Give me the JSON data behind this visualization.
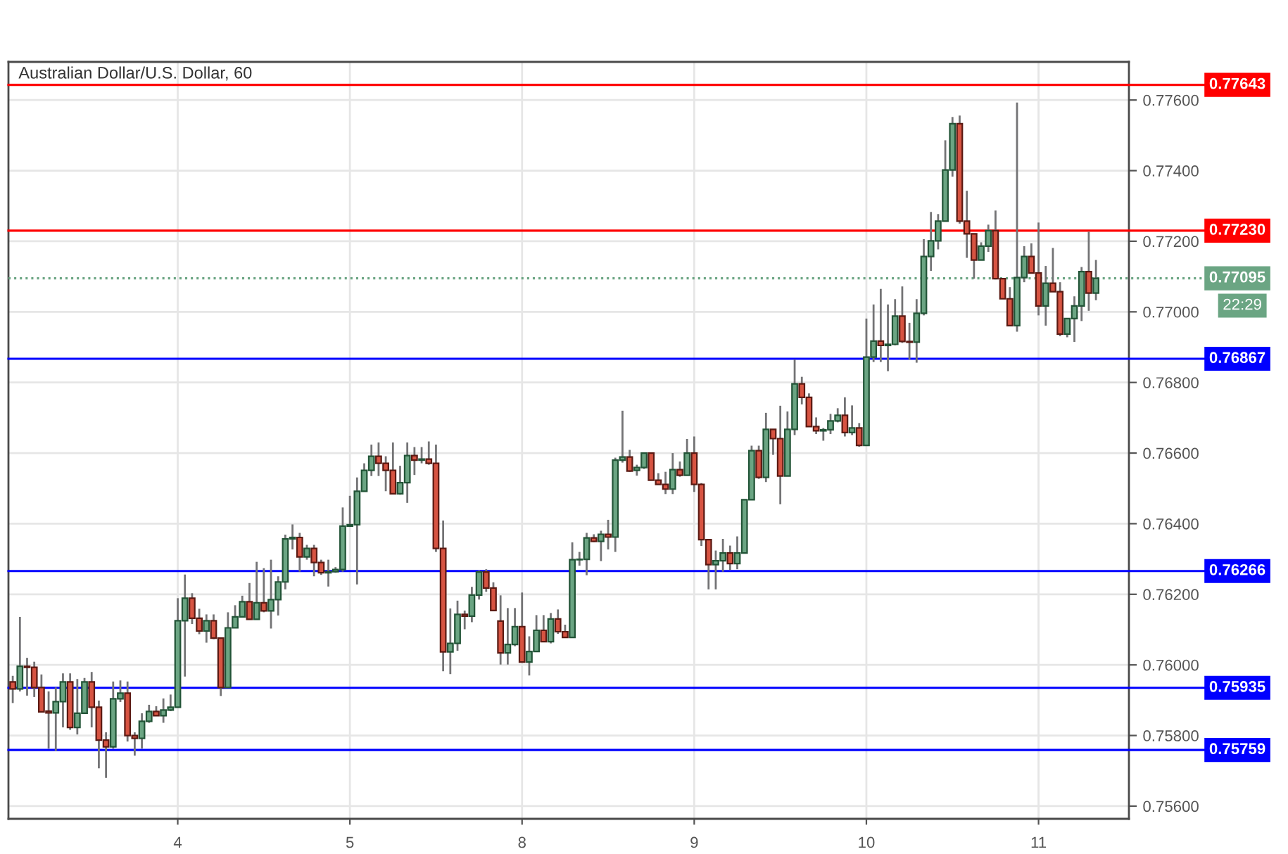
{
  "chart_data": {
    "type": "candlestick",
    "title": "Australian Dollar/U.S. Dollar, 60",
    "categories": [
      null,
      null,
      null,
      null,
      null,
      null,
      null,
      null,
      null,
      null,
      null,
      null,
      null,
      null,
      null,
      null,
      null,
      null,
      null,
      null,
      null,
      null,
      null,
      "4",
      null,
      null,
      null,
      null,
      null,
      null,
      null,
      null,
      null,
      null,
      null,
      null,
      null,
      null,
      null,
      null,
      null,
      null,
      null,
      null,
      null,
      null,
      null,
      "5",
      null,
      null,
      null,
      null,
      null,
      null,
      null,
      null,
      null,
      null,
      null,
      null,
      null,
      null,
      null,
      null,
      null,
      null,
      null,
      null,
      null,
      null,
      null,
      "8",
      null,
      null,
      null,
      null,
      null,
      null,
      null,
      null,
      null,
      null,
      null,
      null,
      null,
      null,
      null,
      null,
      null,
      null,
      null,
      null,
      null,
      null,
      null,
      "9",
      null,
      null,
      null,
      null,
      null,
      null,
      null,
      null,
      null,
      null,
      null,
      null,
      null,
      null,
      null,
      null,
      null,
      null,
      null,
      null,
      null,
      null,
      null,
      "10",
      null,
      null,
      null,
      null,
      null,
      null,
      null,
      null,
      null,
      null,
      null,
      null,
      null,
      null,
      null,
      null,
      null,
      null,
      null,
      null,
      null,
      null,
      null,
      "11",
      null,
      null,
      null,
      null,
      null,
      null,
      null,
      null
    ],
    "ohlc": [
      [
        0.75952,
        0.75969,
        0.75892,
        0.75932
      ],
      [
        0.75932,
        0.76136,
        0.75925,
        0.75996
      ],
      [
        0.75996,
        0.7602,
        0.75913,
        0.75993
      ],
      [
        0.75993,
        0.76009,
        0.75909,
        0.75936
      ],
      [
        0.75936,
        0.75973,
        0.75867,
        0.75867
      ],
      [
        0.75869,
        0.75925,
        0.75763,
        0.75864
      ],
      [
        0.75864,
        0.75936,
        0.75756,
        0.75896
      ],
      [
        0.75896,
        0.75976,
        0.75823,
        0.75952
      ],
      [
        0.75952,
        0.75976,
        0.75816,
        0.75823
      ],
      [
        0.75823,
        0.7596,
        0.75803,
        0.75863
      ],
      [
        0.75863,
        0.75963,
        0.75863,
        0.75952
      ],
      [
        0.75952,
        0.7598,
        0.75823,
        0.7588
      ],
      [
        0.7588,
        0.75899,
        0.75707,
        0.75787
      ],
      [
        0.75787,
        0.75809,
        0.7568,
        0.75768
      ],
      [
        0.75768,
        0.75953,
        0.75763,
        0.75904
      ],
      [
        0.75904,
        0.75956,
        0.75895,
        0.7592
      ],
      [
        0.7592,
        0.75953,
        0.75783,
        0.758
      ],
      [
        0.758,
        0.75809,
        0.75743,
        0.75792
      ],
      [
        0.75792,
        0.75863,
        0.75763,
        0.7584
      ],
      [
        0.7584,
        0.75887,
        0.75836,
        0.75868
      ],
      [
        0.75868,
        0.75883,
        0.75856,
        0.75856
      ],
      [
        0.75856,
        0.75905,
        0.75836,
        0.75872
      ],
      [
        0.75872,
        0.75916,
        0.75869,
        0.7588
      ],
      [
        0.7588,
        0.76189,
        0.7588,
        0.76125
      ],
      [
        0.76125,
        0.76256,
        0.75967,
        0.76189
      ],
      [
        0.76189,
        0.76203,
        0.76116,
        0.76132
      ],
      [
        0.76132,
        0.76159,
        0.76087,
        0.76096
      ],
      [
        0.76096,
        0.76143,
        0.76063,
        0.76125
      ],
      [
        0.76125,
        0.76143,
        0.76073,
        0.76076
      ],
      [
        0.76076,
        0.76076,
        0.75912,
        0.75936
      ],
      [
        0.75936,
        0.76149,
        0.75936,
        0.76105
      ],
      [
        0.76105,
        0.76169,
        0.76105,
        0.76136
      ],
      [
        0.76136,
        0.76196,
        0.76136,
        0.76179
      ],
      [
        0.76179,
        0.76232,
        0.76129,
        0.76129
      ],
      [
        0.76129,
        0.76292,
        0.76129,
        0.76176
      ],
      [
        0.76176,
        0.76274,
        0.76149,
        0.76153
      ],
      [
        0.76153,
        0.76298,
        0.76103,
        0.76185
      ],
      [
        0.76185,
        0.76251,
        0.7614,
        0.76235
      ],
      [
        0.76235,
        0.76369,
        0.76214,
        0.76357
      ],
      [
        0.76357,
        0.76398,
        0.76327,
        0.76361
      ],
      [
        0.76361,
        0.76374,
        0.76264,
        0.76306
      ],
      [
        0.76306,
        0.7634,
        0.76298,
        0.7633
      ],
      [
        0.7633,
        0.7634,
        0.76251,
        0.7629
      ],
      [
        0.7629,
        0.76298,
        0.76255,
        0.76261
      ],
      [
        0.76261,
        0.76298,
        0.76222,
        0.76264
      ],
      [
        0.76264,
        0.76277,
        0.76261,
        0.7627
      ],
      [
        0.7627,
        0.76446,
        0.76264,
        0.76393
      ],
      [
        0.76393,
        0.76479,
        0.76393,
        0.76397
      ],
      [
        0.76397,
        0.76531,
        0.76228,
        0.76492
      ],
      [
        0.76492,
        0.76571,
        0.76492,
        0.76551
      ],
      [
        0.76551,
        0.76624,
        0.76535,
        0.76591
      ],
      [
        0.76591,
        0.7663,
        0.76535,
        0.76571
      ],
      [
        0.76571,
        0.76591,
        0.76492,
        0.76551
      ],
      [
        0.76551,
        0.7663,
        0.76485,
        0.76485
      ],
      [
        0.76485,
        0.76564,
        0.76482,
        0.76516
      ],
      [
        0.76516,
        0.7663,
        0.76459,
        0.76593
      ],
      [
        0.76593,
        0.76617,
        0.76538,
        0.7658
      ],
      [
        0.7658,
        0.76617,
        0.76571,
        0.76583
      ],
      [
        0.76583,
        0.76633,
        0.76567,
        0.76571
      ],
      [
        0.76571,
        0.76624,
        0.7632,
        0.7633
      ],
      [
        0.7633,
        0.76409,
        0.75982,
        0.76037
      ],
      [
        0.76037,
        0.7616,
        0.75974,
        0.76061
      ],
      [
        0.76061,
        0.76182,
        0.7604,
        0.76143
      ],
      [
        0.76143,
        0.76154,
        0.76101,
        0.76138
      ],
      [
        0.76138,
        0.76221,
        0.76121,
        0.76198
      ],
      [
        0.76198,
        0.76267,
        0.76185,
        0.76263
      ],
      [
        0.76263,
        0.76271,
        0.76207,
        0.76218
      ],
      [
        0.76218,
        0.76234,
        0.76154,
        0.76154
      ],
      [
        0.76124,
        0.76197,
        0.76001,
        0.76034
      ],
      [
        0.76034,
        0.76161,
        0.76001,
        0.76058
      ],
      [
        0.76058,
        0.76161,
        0.76053,
        0.76108
      ],
      [
        0.76108,
        0.76205,
        0.76008,
        0.76008
      ],
      [
        0.76008,
        0.76081,
        0.7597,
        0.76038
      ],
      [
        0.76038,
        0.76141,
        0.76038,
        0.76098
      ],
      [
        0.76098,
        0.76141,
        0.76066,
        0.76066
      ],
      [
        0.76066,
        0.76147,
        0.76061,
        0.7613
      ],
      [
        0.7613,
        0.76157,
        0.76088,
        0.76094
      ],
      [
        0.76094,
        0.76114,
        0.76077,
        0.76078
      ],
      [
        0.76078,
        0.76347,
        0.76078,
        0.76298
      ],
      [
        0.76298,
        0.7632,
        0.76281,
        0.76299
      ],
      [
        0.76299,
        0.76374,
        0.76254,
        0.7636
      ],
      [
        0.7636,
        0.7637,
        0.76348,
        0.7635
      ],
      [
        0.7635,
        0.7638,
        0.76294,
        0.7637
      ],
      [
        0.7637,
        0.76411,
        0.76327,
        0.76362
      ],
      [
        0.76362,
        0.76587,
        0.7632,
        0.7658
      ],
      [
        0.7658,
        0.7672,
        0.76573,
        0.76589
      ],
      [
        0.76589,
        0.76609,
        0.76547,
        0.76549
      ],
      [
        0.76551,
        0.76567,
        0.76536,
        0.76559
      ],
      [
        0.76559,
        0.766,
        0.76555,
        0.766
      ],
      [
        0.766,
        0.766,
        0.76523,
        0.76523
      ],
      [
        0.76523,
        0.76543,
        0.76511,
        0.76511
      ],
      [
        0.76511,
        0.76547,
        0.76484,
        0.76498
      ],
      [
        0.76498,
        0.766,
        0.76484,
        0.76553
      ],
      [
        0.76553,
        0.76576,
        0.76533,
        0.76537
      ],
      [
        0.76537,
        0.7664,
        0.76537,
        0.766
      ],
      [
        0.766,
        0.76647,
        0.7649,
        0.76511
      ],
      [
        0.76511,
        0.76515,
        0.76337,
        0.76355
      ],
      [
        0.76355,
        0.76355,
        0.76214,
        0.76284
      ],
      [
        0.76284,
        0.76324,
        0.76214,
        0.76295
      ],
      [
        0.76295,
        0.76357,
        0.76264,
        0.76317
      ],
      [
        0.76317,
        0.76338,
        0.76269,
        0.76287
      ],
      [
        0.76287,
        0.76364,
        0.76271,
        0.76317
      ],
      [
        0.76317,
        0.76468,
        0.76317,
        0.76468
      ],
      [
        0.76468,
        0.76621,
        0.76468,
        0.76607
      ],
      [
        0.76607,
        0.76621,
        0.76527,
        0.76531
      ],
      [
        0.76531,
        0.76714,
        0.76518,
        0.76667
      ],
      [
        0.76667,
        0.76667,
        0.76595,
        0.76641
      ],
      [
        0.76641,
        0.76734,
        0.76455,
        0.76535
      ],
      [
        0.76535,
        0.76718,
        0.76535,
        0.76667
      ],
      [
        0.76667,
        0.76865,
        0.76651,
        0.76796
      ],
      [
        0.76796,
        0.76816,
        0.76738,
        0.76758
      ],
      [
        0.76758,
        0.76769,
        0.76675,
        0.76675
      ],
      [
        0.76675,
        0.76701,
        0.76654,
        0.76663
      ],
      [
        0.76663,
        0.76671,
        0.76635,
        0.76666
      ],
      [
        0.76666,
        0.76711,
        0.76654,
        0.76691
      ],
      [
        0.76691,
        0.76727,
        0.76687,
        0.76707
      ],
      [
        0.76707,
        0.76758,
        0.76647,
        0.76658
      ],
      [
        0.76658,
        0.76735,
        0.76651,
        0.76671
      ],
      [
        0.76671,
        0.76685,
        0.76618,
        0.76622
      ],
      [
        0.76622,
        0.76981,
        0.76622,
        0.76872
      ],
      [
        0.76872,
        0.77021,
        0.76858,
        0.76917
      ],
      [
        0.76917,
        0.77065,
        0.76858,
        0.76905
      ],
      [
        0.76905,
        0.77021,
        0.76832,
        0.76908
      ],
      [
        0.76908,
        0.77036,
        0.76905,
        0.76988
      ],
      [
        0.76988,
        0.77072,
        0.76912,
        0.76916
      ],
      [
        0.76916,
        0.76969,
        0.76865,
        0.76914
      ],
      [
        0.76914,
        0.77036,
        0.76856,
        0.76996
      ],
      [
        0.76996,
        0.77206,
        0.7699,
        0.77157
      ],
      [
        0.77157,
        0.77283,
        0.77116,
        0.77201
      ],
      [
        0.77201,
        0.77277,
        0.77177,
        0.77257
      ],
      [
        0.77257,
        0.77486,
        0.77257,
        0.77402
      ],
      [
        0.77402,
        0.77552,
        0.77383,
        0.77533
      ],
      [
        0.77533,
        0.77556,
        0.7725,
        0.77257
      ],
      [
        0.77257,
        0.77343,
        0.77153,
        0.77221
      ],
      [
        0.77221,
        0.77221,
        0.77094,
        0.77147
      ],
      [
        0.77147,
        0.77197,
        0.77147,
        0.77186
      ],
      [
        0.77186,
        0.77247,
        0.7717,
        0.7723
      ],
      [
        0.7723,
        0.77287,
        0.77094,
        0.77094
      ],
      [
        0.77094,
        0.77094,
        0.77037,
        0.77037
      ],
      [
        0.77037,
        0.7707,
        0.76961,
        0.76961
      ],
      [
        0.76961,
        0.77593,
        0.76944,
        0.77097
      ],
      [
        0.77097,
        0.77186,
        0.77084,
        0.77157
      ],
      [
        0.77157,
        0.77194,
        0.7711,
        0.7711
      ],
      [
        0.7711,
        0.77253,
        0.7699,
        0.77017
      ],
      [
        0.77017,
        0.7713,
        0.76961,
        0.77081
      ],
      [
        0.77081,
        0.77181,
        0.77057,
        0.77057
      ],
      [
        0.77057,
        0.77084,
        0.76931,
        0.76937
      ],
      [
        0.76937,
        0.76981,
        0.76928,
        0.76981
      ],
      [
        0.76981,
        0.77044,
        0.76915,
        0.77017
      ],
      [
        0.77017,
        0.77127,
        0.76974,
        0.77114
      ],
      [
        0.77114,
        0.77227,
        0.77003,
        0.77053
      ],
      [
        0.77053,
        0.77147,
        0.77033,
        0.77095
      ]
    ],
    "ylim": [
      0.75564,
      0.77708
    ],
    "yticks": [
      {
        "value": 0.756,
        "label": "0.75600"
      },
      {
        "value": 0.758,
        "label": "0.75800"
      },
      {
        "value": 0.76,
        "label": "0.76000"
      },
      {
        "value": 0.762,
        "label": "0.76200"
      },
      {
        "value": 0.764,
        "label": "0.76400"
      },
      {
        "value": 0.766,
        "label": "0.76600"
      },
      {
        "value": 0.768,
        "label": "0.76800"
      },
      {
        "value": 0.77,
        "label": "0.77000"
      },
      {
        "value": 0.772,
        "label": "0.77200"
      },
      {
        "value": 0.774,
        "label": "0.77400"
      },
      {
        "value": 0.776,
        "label": "0.77600"
      }
    ],
    "grid": true,
    "ref_lines": [
      {
        "axis": "y",
        "value": 0.77643,
        "label": "0.77643",
        "color": "#ff0000"
      },
      {
        "axis": "y",
        "value": 0.7723,
        "label": "0.77230",
        "color": "#ff0000"
      },
      {
        "axis": "y",
        "value": 0.77095,
        "label": "0.77095",
        "color": "#6ba583",
        "line_style": "dotted"
      },
      {
        "axis": "y",
        "value": 0.76867,
        "label": "0.76867",
        "color": "#0000ff"
      },
      {
        "axis": "y",
        "value": 0.76266,
        "label": "0.76266",
        "color": "#0000ff"
      },
      {
        "axis": "y",
        "value": 0.75935,
        "label": "0.75935",
        "color": "#0000ff"
      },
      {
        "axis": "y",
        "value": 0.75759,
        "label": "0.75759",
        "color": "#0000ff"
      }
    ],
    "annotations": [
      "22:29"
    ]
  }
}
